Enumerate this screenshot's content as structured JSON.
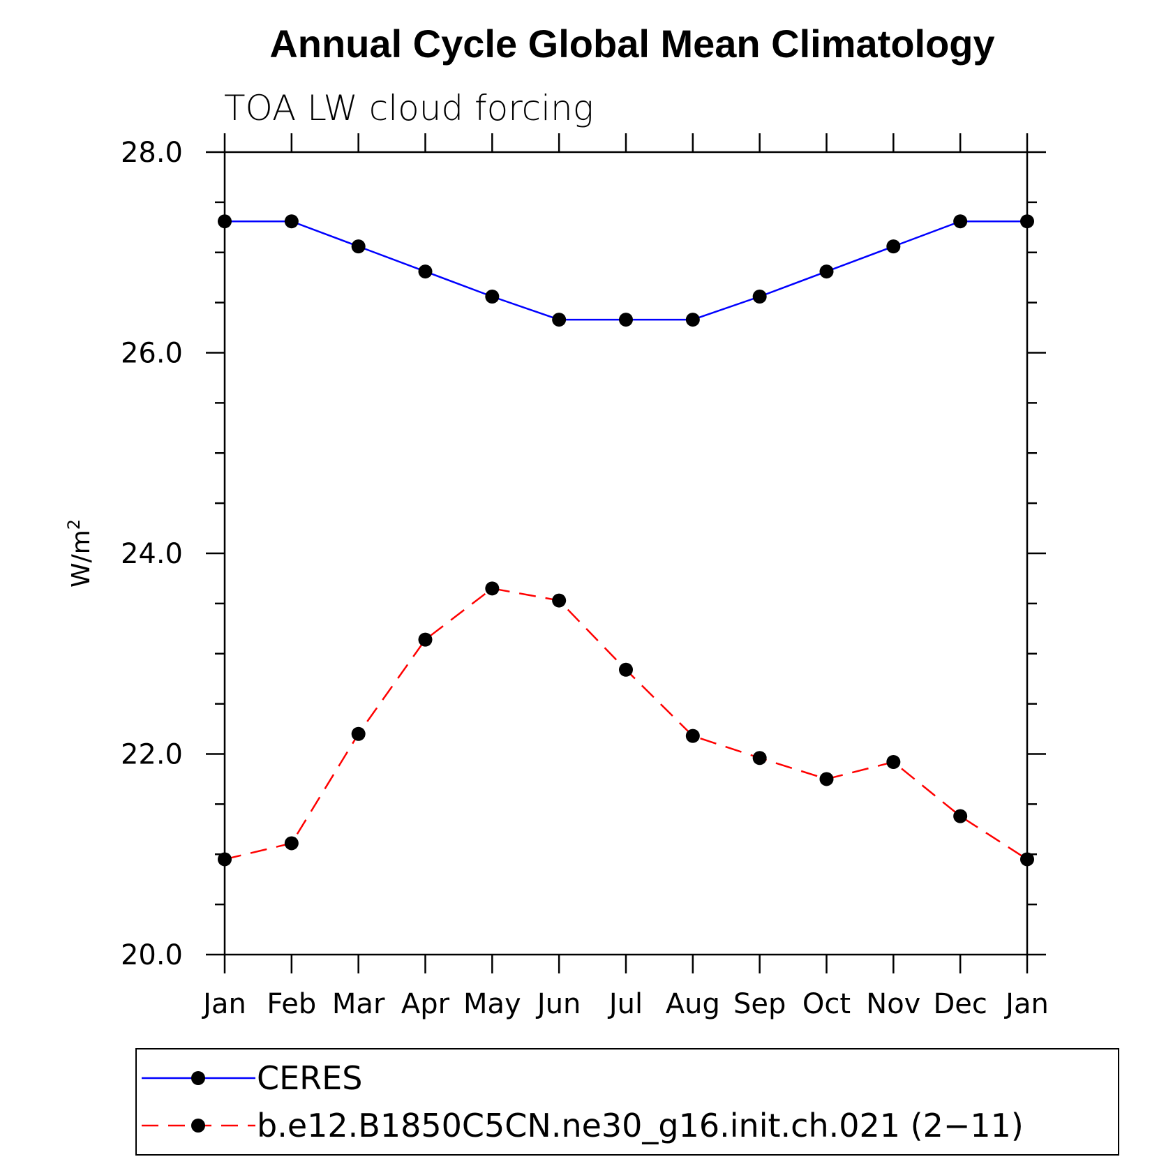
{
  "chart_data": {
    "type": "line",
    "title": "Annual Cycle Global Mean Climatology",
    "subtitle": "TOA LW cloud forcing",
    "ylabel": "W/m",
    "ylabel_sup": "2",
    "xlabel": "",
    "categories": [
      "Jan",
      "Feb",
      "Mar",
      "Apr",
      "May",
      "Jun",
      "Jul",
      "Aug",
      "Sep",
      "Oct",
      "Nov",
      "Dec",
      "Jan"
    ],
    "ylim": [
      20.0,
      28.0
    ],
    "yticks": [
      "20.0",
      "22.0",
      "24.0",
      "26.0",
      "28.0"
    ],
    "grid": false,
    "legend_position": "bottom",
    "series": [
      {
        "name": "CERES",
        "color": "#0000ff",
        "dash": "solid",
        "values": [
          27.31,
          27.31,
          27.06,
          26.81,
          26.56,
          26.33,
          26.33,
          26.33,
          26.56,
          26.81,
          27.06,
          27.31,
          27.31
        ]
      },
      {
        "name": "b.e12.B1850C5CN.ne30_g16.init.ch.021 (2−11)",
        "color": "#ff0000",
        "dash": "dashed",
        "values": [
          20.95,
          21.11,
          22.2,
          23.14,
          23.65,
          23.53,
          22.84,
          22.18,
          21.96,
          21.75,
          21.92,
          21.38,
          20.95
        ]
      }
    ]
  }
}
